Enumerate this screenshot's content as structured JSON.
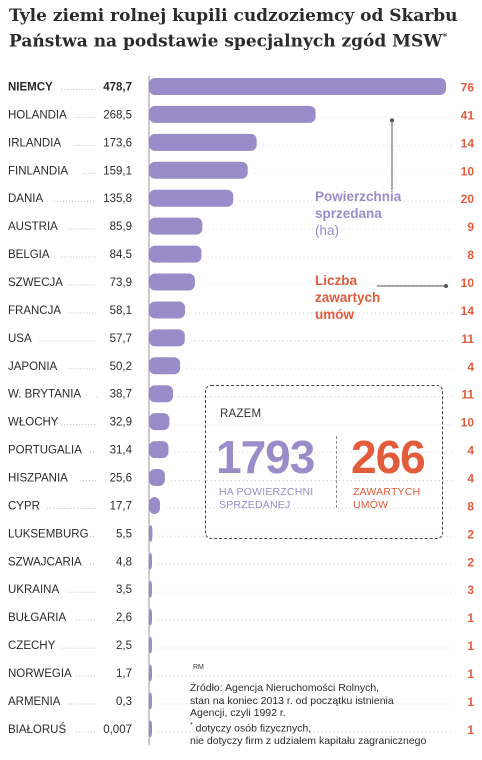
{
  "title": "Tyle ziemi rolnej kupili cudzoziemcy od Skarbu Państwa na podstawie specjalnych zgód MSW",
  "title_asterisk": "*",
  "legend": {
    "area_line1": "Powierzchnia",
    "area_line2": "sprzedana",
    "area_unit": "(ha)",
    "count_line1": "Liczba",
    "count_line2": "zawartych",
    "count_line3": "umów"
  },
  "totals": {
    "label": "RAZEM",
    "area_value": "1793",
    "area_caption_l1": "HA POWIERZCHNI",
    "area_caption_l2": "SPRZEDANEJ",
    "count_value": "266",
    "count_caption_l1": "ZAWARTYCH",
    "count_caption_l2": "UMÓW"
  },
  "credit": "RM",
  "source_lines": [
    "Źródło: Agencja Nieruchomości Rolnych,",
    "stan na koniec 2013 r. od początku istnienia",
    "Agencji, czyli 1992 r."
  ],
  "footnote_lines": [
    "dotyczy osób fizycznych,",
    "nie dotyczy firm z udziałem kapitału zagranicznego"
  ],
  "footnote_star": "*",
  "colors": {
    "bar": "#9a8cc8",
    "count": "#e25b3b",
    "text": "#2b2b2b"
  },
  "chart_data": {
    "type": "bar",
    "orientation": "horizontal",
    "categories": [
      "NIEMCY",
      "HOLANDIA",
      "IRLANDIA",
      "FINLANDIA",
      "DANIA",
      "AUSTRIA",
      "BELGIA",
      "SZWECJA",
      "FRANCJA",
      "USA",
      "JAPONIA",
      "W. BRYTANIA",
      "WŁOCHY",
      "PORTUGALIA",
      "HISZPANIA",
      "CYPR",
      "LUKSEMBURG",
      "SZWAJCARIA",
      "UKRAINA",
      "BUŁGARIA",
      "CZECHY",
      "NORWEGIA",
      "ARMENIA",
      "BIAŁORUŚ"
    ],
    "value_labels": [
      "478,7",
      "268,5",
      "173,6",
      "159,1",
      "135,8",
      "85,9",
      "84,5",
      "73,9",
      "58,1",
      "57,7",
      "50,2",
      "38,7",
      "32,9",
      "31,4",
      "25,6",
      "17,7",
      "5,5",
      "4,8",
      "3,5",
      "2,6",
      "2,5",
      "1,7",
      "0,3",
      "0,007"
    ],
    "series": [
      {
        "name": "Powierzchnia sprzedana (ha)",
        "values": [
          478.7,
          268.5,
          173.6,
          159.1,
          135.8,
          85.9,
          84.5,
          73.9,
          58.1,
          57.7,
          50.2,
          38.7,
          32.9,
          31.4,
          25.6,
          17.7,
          5.5,
          4.8,
          3.5,
          2.6,
          2.5,
          1.7,
          0.3,
          0.007
        ]
      },
      {
        "name": "Liczba zawartych umów",
        "values": [
          76,
          41,
          14,
          10,
          20,
          9,
          8,
          10,
          14,
          11,
          4,
          11,
          10,
          4,
          4,
          8,
          2,
          2,
          3,
          1,
          1,
          1,
          1,
          1
        ]
      }
    ],
    "bold_category": "NIEMCY"
  }
}
